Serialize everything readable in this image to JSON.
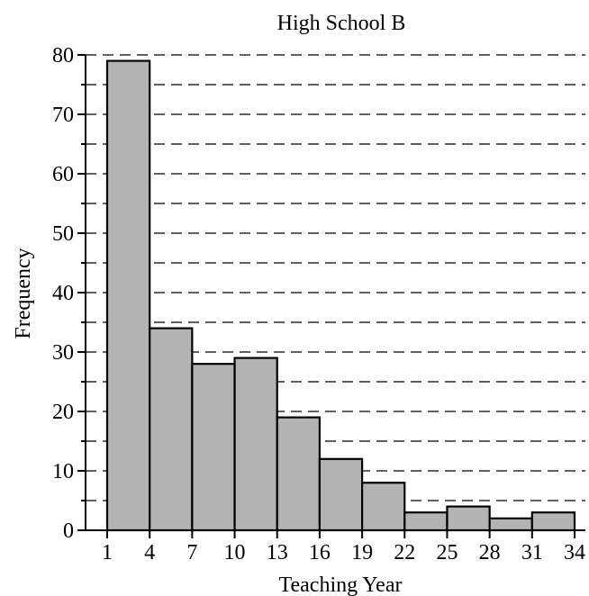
{
  "chart_data": {
    "type": "bar",
    "title": "High School B",
    "xlabel": "Teaching Year",
    "ylabel": "Frequency",
    "bin_edges": [
      1,
      4,
      7,
      10,
      13,
      16,
      19,
      22,
      25,
      28,
      31,
      34
    ],
    "values": [
      79,
      34,
      28,
      29,
      19,
      12,
      8,
      3,
      4,
      2,
      3
    ],
    "xlim": [
      1,
      34
    ],
    "ylim": [
      0,
      80
    ],
    "yticks": [
      0,
      10,
      20,
      30,
      40,
      50,
      60,
      70,
      80
    ],
    "xticks": [
      1,
      4,
      7,
      10,
      13,
      16,
      19,
      22,
      25,
      28,
      31,
      34
    ],
    "grid_step": 5,
    "grid": "dashed horizontal",
    "colors": {
      "bar_fill": "#b3b3b3",
      "bar_stroke": "#000000",
      "grid": "#000000"
    }
  }
}
